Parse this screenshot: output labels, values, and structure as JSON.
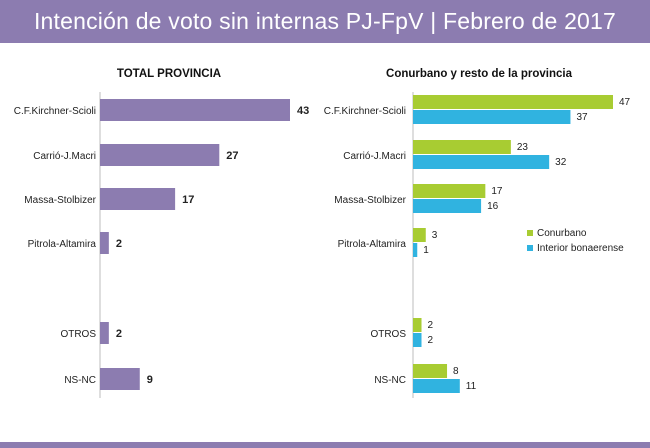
{
  "title": "Intención de voto sin internas PJ-FpV | Febrero de 2017",
  "colors": {
    "header": "#8c7cb0",
    "total_bar": "#8c7cb0",
    "conurbano": "#a8cc32",
    "interior": "#30b3e0"
  },
  "chart_data": [
    {
      "type": "bar",
      "orientation": "horizontal",
      "title": "TOTAL PROVINCIA",
      "categories": [
        "C.F.Kirchner-Scioli",
        "Carrió-J.Macri",
        "Massa-Stolbizer",
        "Pitrola-Altamira",
        "OTROS",
        "NS-NC"
      ],
      "values": [
        43,
        27,
        17,
        2,
        2,
        9
      ],
      "xlim": [
        0,
        45
      ]
    },
    {
      "type": "bar",
      "orientation": "horizontal",
      "title": "Conurbano y resto de la provincia",
      "categories": [
        "C.F.Kirchner-Scioli",
        "Carrió-J.Macri",
        "Massa-Stolbizer",
        "Pitrola-Altamira",
        "OTROS",
        "NS-NC"
      ],
      "series": [
        {
          "name": "Conurbano",
          "values": [
            47,
            23,
            17,
            3,
            2,
            8
          ]
        },
        {
          "name": "Interior bonaerense",
          "values": [
            37,
            32,
            16,
            1,
            2,
            11
          ]
        }
      ],
      "legend": "right",
      "xlim": [
        0,
        47
      ]
    }
  ]
}
